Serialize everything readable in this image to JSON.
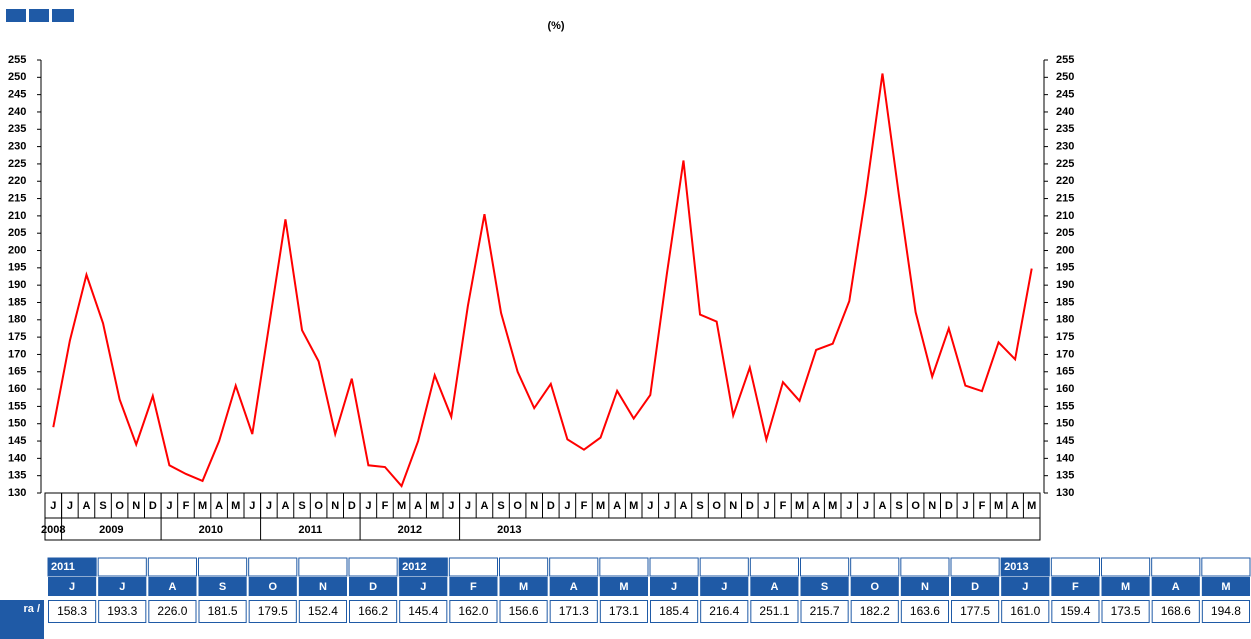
{
  "chart_data": {
    "type": "line",
    "subtitle": "(%)",
    "categories": [
      "J",
      "J",
      "A",
      "S",
      "O",
      "N",
      "D",
      "J",
      "F",
      "M",
      "A",
      "M",
      "J",
      "J",
      "A",
      "S",
      "O",
      "N",
      "D",
      "J",
      "F",
      "M",
      "A",
      "M",
      "J",
      "J",
      "A",
      "S",
      "O",
      "N",
      "D",
      "J",
      "F",
      "M",
      "A",
      "M",
      "J",
      "J",
      "A",
      "S",
      "O",
      "N",
      "D",
      "J",
      "F",
      "M",
      "A",
      "M",
      "J",
      "J",
      "A",
      "S",
      "O",
      "N",
      "D",
      "J",
      "F",
      "M",
      "A",
      "M"
    ],
    "x_groups": [
      "2008",
      "2009",
      "2010",
      "2011",
      "2012",
      "2013"
    ],
    "values": [
      149,
      174,
      193,
      179,
      157,
      144,
      158,
      138,
      135.5,
      133.5,
      145,
      161,
      147,
      178,
      209,
      177,
      168,
      147,
      163,
      138,
      137.5,
      132,
      145,
      164,
      152,
      184,
      210.5,
      182,
      165,
      154.5,
      161.5,
      145.5,
      142.5,
      146,
      159.5,
      151.5,
      158.3,
      193.3,
      226.0,
      181.5,
      179.5,
      152.4,
      166.2,
      145.4,
      162.0,
      156.6,
      171.3,
      173.1,
      185.4,
      216.4,
      251.1,
      215.7,
      182.2,
      163.6,
      177.5,
      161.0,
      159.4,
      173.5,
      168.6,
      194.8
    ],
    "color": "#ff0000",
    "ylim": [
      130,
      255
    ],
    "yticks": [
      130,
      135,
      140,
      145,
      150,
      155,
      160,
      165,
      170,
      175,
      180,
      185,
      190,
      195,
      200,
      205,
      210,
      215,
      220,
      225,
      230,
      235,
      240,
      245,
      250,
      255
    ]
  },
  "table": {
    "year_row": [
      "2011",
      null,
      null,
      null,
      null,
      null,
      null,
      "2012",
      null,
      null,
      null,
      null,
      null,
      null,
      null,
      null,
      null,
      null,
      null,
      "2013",
      null,
      null,
      null,
      null
    ],
    "month_row": [
      "J",
      "J",
      "A",
      "S",
      "O",
      "N",
      "D",
      "J",
      "F",
      "M",
      "A",
      "M",
      "J",
      "J",
      "A",
      "S",
      "O",
      "N",
      "D",
      "J",
      "F",
      "M",
      "A",
      "M"
    ],
    "row_label": "ra /",
    "values": [
      "158.3",
      "193.3",
      "226.0",
      "181.5",
      "179.5",
      "152.4",
      "166.2",
      "145.4",
      "162.0",
      "156.6",
      "171.3",
      "173.1",
      "185.4",
      "216.4",
      "251.1",
      "215.7",
      "182.2",
      "163.6",
      "177.5",
      "161.0",
      "159.4",
      "173.5",
      "168.6",
      "194.8"
    ]
  }
}
